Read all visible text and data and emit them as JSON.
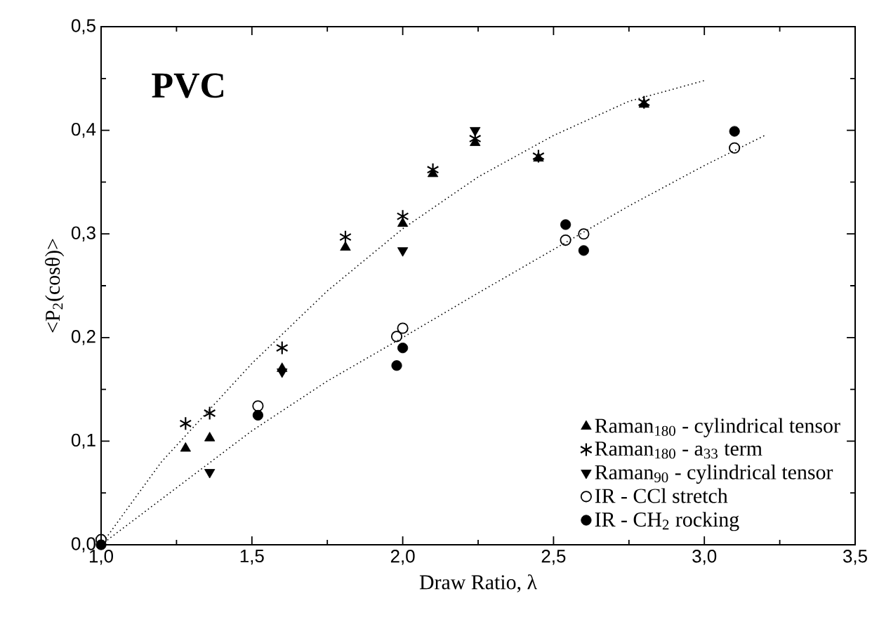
{
  "chart_data": {
    "type": "scatter",
    "title": "PVC",
    "xlabel": "Draw Ratio, λ",
    "ylabel": "<P$_{2}$(cosθ)>",
    "xlim": [
      1.0,
      3.5
    ],
    "ylim": [
      0.0,
      0.5
    ],
    "xticks": [
      {
        "value": 1.0,
        "label": "1,0"
      },
      {
        "value": 1.5,
        "label": "1,5"
      },
      {
        "value": 2.0,
        "label": "2,0"
      },
      {
        "value": 2.5,
        "label": "2,5"
      },
      {
        "value": 3.0,
        "label": "3,0"
      },
      {
        "value": 3.5,
        "label": "3,5"
      }
    ],
    "yticks": [
      {
        "value": 0.0,
        "label": "0,0"
      },
      {
        "value": 0.1,
        "label": "0,1"
      },
      {
        "value": 0.2,
        "label": "0,2"
      },
      {
        "value": 0.3,
        "label": "0,3"
      },
      {
        "value": 0.4,
        "label": "0,4"
      },
      {
        "value": 0.5,
        "label": "0,5"
      }
    ],
    "legend": "bottom right",
    "series": [
      {
        "type": "line",
        "color": "#000000",
        "line_style": "dotted",
        "marker": "none",
        "x": [
          1.0,
          1.2,
          1.5,
          1.75,
          2.0,
          2.25,
          2.5,
          2.75,
          3.0
        ],
        "values": [
          0.0,
          0.08,
          0.175,
          0.245,
          0.305,
          0.355,
          0.395,
          0.428,
          0.448
        ]
      },
      {
        "type": "line",
        "color": "#000000",
        "line_style": "dotted",
        "marker": "none",
        "x": [
          1.0,
          1.25,
          1.5,
          1.75,
          2.0,
          2.25,
          2.5,
          2.75,
          3.0,
          3.2
        ],
        "values": [
          0.0,
          0.055,
          0.11,
          0.158,
          0.2,
          0.243,
          0.285,
          0.327,
          0.366,
          0.395
        ]
      },
      {
        "name": "Raman$_{180}$ - cylindrical tensor",
        "color": "#000000",
        "marker": "triangle",
        "x": [
          1.28,
          1.36,
          1.6,
          1.81,
          2.0,
          2.1,
          2.24,
          2.45,
          2.8
        ],
        "values": [
          0.093,
          0.103,
          0.17,
          0.287,
          0.31,
          0.358,
          0.388,
          0.373,
          0.425
        ]
      },
      {
        "name": "Raman$_{180}$ - a$_{33}$ term",
        "color": "#000000",
        "marker": "cross",
        "x": [
          1.28,
          1.36,
          1.6,
          1.81,
          2.0,
          2.1,
          2.24,
          2.45,
          2.8
        ],
        "values": [
          0.117,
          0.127,
          0.19,
          0.297,
          0.317,
          0.362,
          0.392,
          0.375,
          0.427
        ]
      },
      {
        "name": "Raman$_{90}$  - cylindrical tensor",
        "color": "#000000",
        "marker": "triangle-down",
        "x": [
          1.36,
          1.6,
          2.0,
          2.24
        ],
        "values": [
          0.07,
          0.167,
          0.284,
          0.4
        ]
      },
      {
        "name": "IR - CCl stretch",
        "color": "#000000",
        "marker": "circle-open",
        "x": [
          1.0,
          1.52,
          1.98,
          2.0,
          2.54,
          2.6,
          3.1
        ],
        "values": [
          0.005,
          0.134,
          0.201,
          0.209,
          0.294,
          0.3,
          0.383
        ]
      },
      {
        "name": "IR - CH$_{2}$ rocking",
        "color": "#000000",
        "marker": "circle",
        "x": [
          1.0,
          1.52,
          1.98,
          2.0,
          2.54,
          2.6,
          3.1
        ],
        "values": [
          0.0,
          0.125,
          0.173,
          0.19,
          0.309,
          0.284,
          0.399
        ]
      }
    ]
  }
}
